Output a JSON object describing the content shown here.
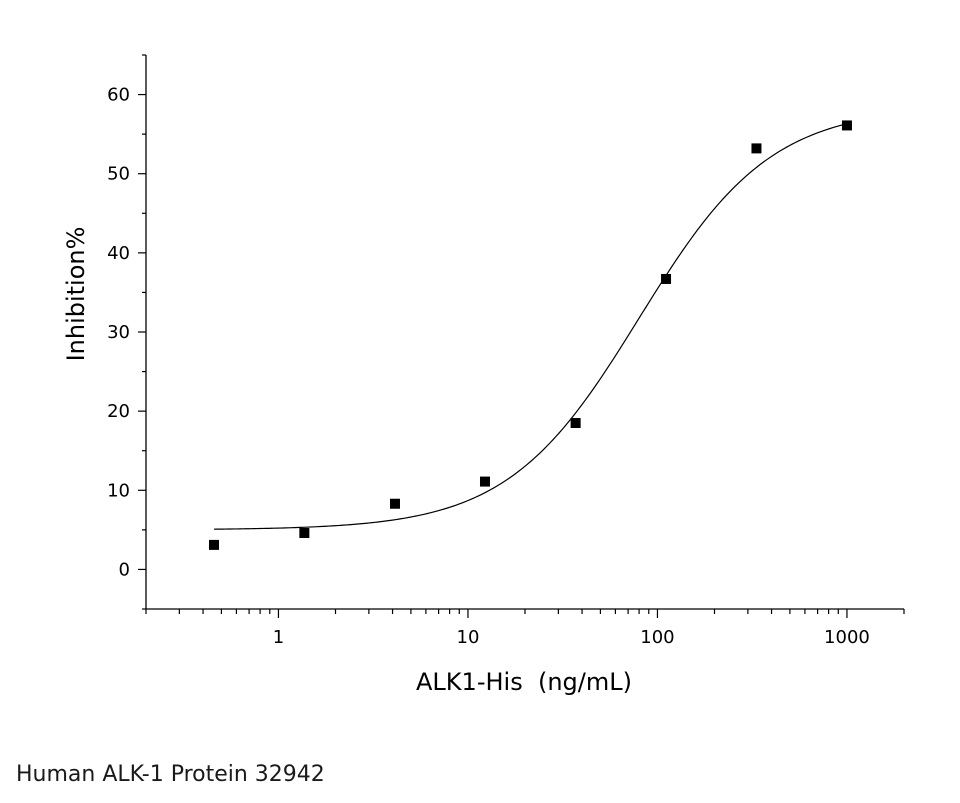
{
  "caption": "Human ALK-1 Protein 32942",
  "chart_data": {
    "type": "scatter",
    "xlabel": "ALK1-His  (ng/mL)",
    "ylabel": "Inhibition%",
    "x_scale": "log",
    "xlim": [
      0.2,
      2000
    ],
    "ylim": [
      -5,
      65
    ],
    "x_major_ticks": [
      1,
      10,
      100,
      1000
    ],
    "x_tick_labels": [
      "1",
      "10",
      "100",
      "1000"
    ],
    "y_major_ticks": [
      0,
      10,
      20,
      30,
      40,
      50,
      60
    ],
    "y_tick_labels": [
      "0",
      "10",
      "20",
      "30",
      "40",
      "50",
      "60"
    ],
    "grid": false,
    "legend": "none",
    "series": [
      {
        "marker": "square",
        "color": "#000000",
        "points": [
          {
            "x": 0.457,
            "y": 3.1
          },
          {
            "x": 1.37,
            "y": 4.6
          },
          {
            "x": 4.12,
            "y": 8.3
          },
          {
            "x": 12.3,
            "y": 11.1
          },
          {
            "x": 37.0,
            "y": 18.5
          },
          {
            "x": 111,
            "y": 36.7
          },
          {
            "x": 333,
            "y": 53.2
          },
          {
            "x": 1000,
            "y": 56.1
          }
        ]
      }
    ],
    "fit_curve": {
      "model": "four-parameter logistic",
      "color": "#000000",
      "bottom": 5.0,
      "top": 58.5,
      "ec50": 80,
      "hill_slope": 1.25,
      "x_range": [
        0.457,
        1000
      ]
    }
  }
}
